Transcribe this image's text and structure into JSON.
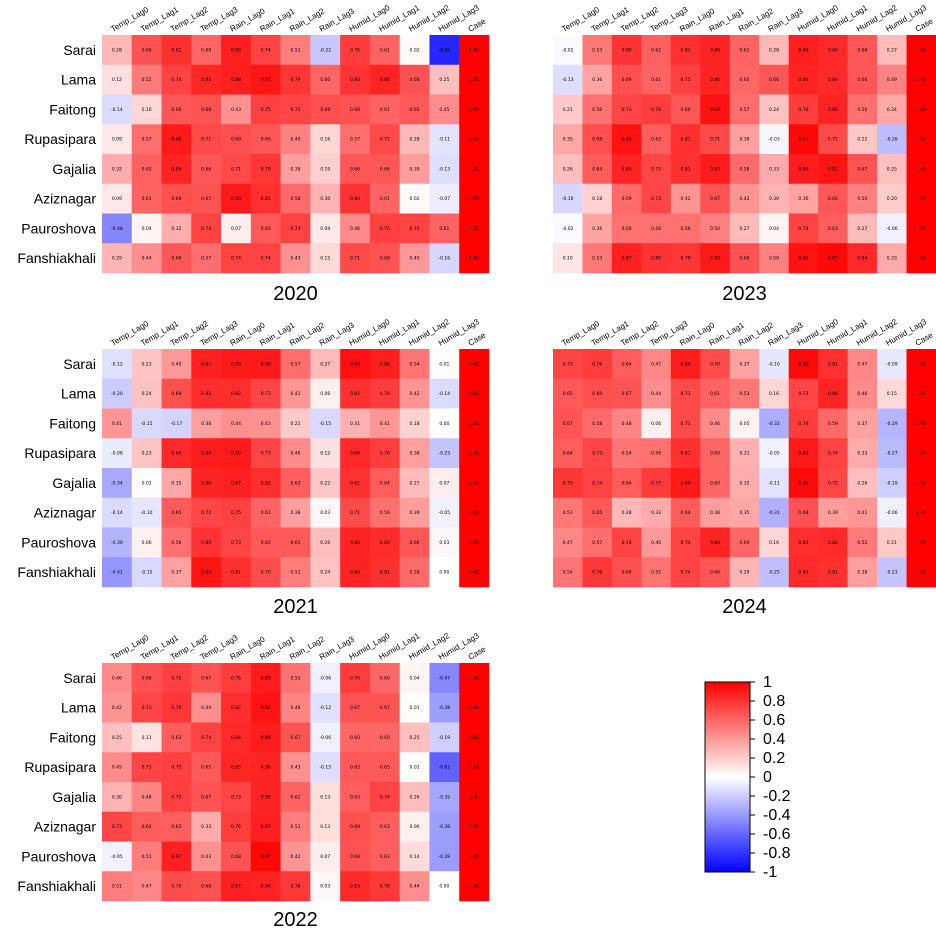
{
  "chart_data": [
    {
      "type": "heatmap",
      "title": "2020",
      "rows": [
        "Sarai",
        "Lama",
        "Faitong",
        "Rupasipara",
        "Gajalia",
        "Aziznagar",
        "Pauroshova",
        "Fanshiakhali"
      ],
      "columns": [
        "Temp_Lag0",
        "Temp_Lag1",
        "Temp_Lag2",
        "Temp_Lag3",
        "Rain_Lag0",
        "Rain_Lag1",
        "Rain_Lag2",
        "Rain_Lag3",
        "Humid_Lag0",
        "Humid_Lag1",
        "Humid_Lag2",
        "Humid_Lag3",
        "Case"
      ],
      "values": [
        [
          0.28,
          0.68,
          0.81,
          0.6,
          0.88,
          0.74,
          0.51,
          -0.22,
          0.76,
          0.61,
          0.02,
          -0.85,
          1.0
        ],
        [
          0.12,
          0.52,
          0.74,
          0.85,
          0.88,
          0.91,
          0.79,
          0.6,
          0.8,
          0.86,
          0.68,
          0.25,
          1.0
        ],
        [
          -0.14,
          0.16,
          0.66,
          0.68,
          0.43,
          0.75,
          0.73,
          0.69,
          0.68,
          0.61,
          0.65,
          0.45,
          1.0
        ],
        [
          0.09,
          0.57,
          0.9,
          0.71,
          0.69,
          0.66,
          0.49,
          0.16,
          0.57,
          0.71,
          0.28,
          -0.11,
          1.0
        ],
        [
          0.32,
          0.62,
          0.86,
          0.66,
          0.71,
          0.79,
          0.38,
          0.19,
          0.66,
          0.66,
          0.39,
          -0.13,
          1.0
        ],
        [
          0.09,
          0.61,
          0.69,
          0.67,
          0.9,
          0.81,
          0.58,
          0.3,
          0.8,
          0.61,
          0.02,
          -0.07,
          1.0
        ],
        [
          -0.48,
          0.04,
          0.32,
          0.74,
          0.07,
          0.65,
          0.74,
          0.09,
          0.46,
          0.75,
          0.74,
          0.61,
          1.0
        ],
        [
          0.29,
          0.44,
          0.66,
          0.57,
          0.74,
          0.74,
          0.43,
          0.15,
          0.71,
          0.68,
          0.4,
          -0.16,
          1.0
        ]
      ],
      "colorbar": {
        "min": -1,
        "max": 1
      }
    },
    {
      "type": "heatmap",
      "title": "2021",
      "rows": [
        "Sarai",
        "Lama",
        "Faitong",
        "Rupasipara",
        "Gajalia",
        "Aziznagar",
        "Pauroshova",
        "Fanshiakhali"
      ],
      "columns": [
        "Temp_Lag0",
        "Temp_Lag1",
        "Temp_Lag2",
        "Temp_Lag3",
        "Rain_Lag0",
        "Rain_Lag1",
        "Rain_Lag2",
        "Rain_Lag3",
        "Humid_Lag0",
        "Humid_Lag1",
        "Humid_Lag2",
        "Humid_Lag3",
        "Case"
      ],
      "values": [
        [
          -0.12,
          0.23,
          0.4,
          0.87,
          0.9,
          0.9,
          0.57,
          0.27,
          0.94,
          0.88,
          0.54,
          0.01,
          1.0
        ],
        [
          -0.2,
          0.24,
          0.69,
          0.82,
          0.82,
          0.73,
          0.41,
          0.06,
          0.81,
          0.76,
          0.42,
          -0.14,
          1.0
        ],
        [
          0.41,
          -0.15,
          -0.17,
          0.38,
          0.44,
          0.43,
          0.21,
          -0.15,
          0.31,
          0.41,
          0.18,
          0.0,
          1.0
        ],
        [
          -0.08,
          0.23,
          0.84,
          0.89,
          0.9,
          0.73,
          0.46,
          0.12,
          0.84,
          0.76,
          0.38,
          -0.23,
          1.0
        ],
        [
          -0.34,
          0.01,
          0.35,
          0.86,
          0.87,
          0.82,
          0.63,
          0.22,
          0.81,
          0.64,
          0.27,
          0.07,
          1.0
        ],
        [
          -0.14,
          -0.1,
          0.65,
          0.72,
          0.75,
          0.61,
          0.38,
          0.03,
          0.71,
          0.56,
          0.39,
          -0.05,
          1.0
        ],
        [
          -0.3,
          0.06,
          0.56,
          0.8,
          0.73,
          0.65,
          0.65,
          0.26,
          0.86,
          0.83,
          0.66,
          0.03,
          1.0
        ],
        [
          -0.41,
          -0.15,
          0.37,
          0.92,
          0.81,
          0.7,
          0.51,
          0.24,
          0.86,
          0.81,
          0.58,
          0.0,
          1.0
        ]
      ],
      "colorbar": {
        "min": -1,
        "max": 1
      }
    },
    {
      "type": "heatmap",
      "title": "2022",
      "rows": [
        "Sarai",
        "Lama",
        "Faitong",
        "Rupasipara",
        "Gajalia",
        "Aziznagar",
        "Pauroshova",
        "Fanshiakhali"
      ],
      "columns": [
        "Temp_Lag0",
        "Temp_Lag1",
        "Temp_Lag2",
        "Temp_Lag3",
        "Rain_Lag0",
        "Rain_Lag1",
        "Rain_Lag2",
        "Rain_Lag3",
        "Humid_Lag0",
        "Humid_Lag1",
        "Humid_Lag2",
        "Humid_Lag3",
        "Case"
      ],
      "values": [
        [
          0.46,
          0.68,
          0.75,
          0.67,
          0.76,
          0.89,
          0.55,
          -0.06,
          0.76,
          0.6,
          0.04,
          -0.47,
          1.0
        ],
        [
          0.42,
          0.73,
          0.79,
          0.44,
          0.82,
          0.92,
          0.48,
          -0.12,
          0.67,
          0.67,
          0.01,
          -0.38,
          1.0
        ],
        [
          0.25,
          0.11,
          0.63,
          0.74,
          0.84,
          0.89,
          0.67,
          -0.06,
          0.6,
          0.6,
          0.25,
          -0.19,
          1.0
        ],
        [
          0.45,
          0.73,
          0.75,
          0.65,
          0.85,
          0.86,
          0.43,
          -0.13,
          0.65,
          0.65,
          0.01,
          -0.62,
          1.0
        ],
        [
          0.3,
          0.48,
          0.75,
          0.67,
          0.73,
          0.86,
          0.61,
          0.13,
          0.63,
          0.74,
          0.26,
          -0.35,
          1.0
        ],
        [
          0.73,
          0.64,
          0.63,
          0.33,
          0.76,
          0.87,
          0.51,
          0.13,
          0.69,
          0.63,
          0.06,
          -0.38,
          1.0
        ],
        [
          -0.05,
          0.51,
          0.87,
          0.43,
          0.68,
          0.97,
          0.42,
          0.07,
          0.68,
          0.63,
          0.14,
          -0.39,
          1.0
        ],
        [
          0.51,
          0.47,
          0.7,
          0.68,
          0.87,
          0.86,
          0.78,
          0.03,
          0.83,
          0.78,
          0.44,
          0.0,
          1.0
        ]
      ],
      "colorbar": {
        "min": -1,
        "max": 1
      }
    },
    {
      "type": "heatmap",
      "title": "2023",
      "rows": [
        "Sarai",
        "Lama",
        "Faitong",
        "Rupasipara",
        "Gajalia",
        "Aziznagar",
        "Pauroshova",
        "Fanshiakhali"
      ],
      "columns": [
        "Temp_Lag0",
        "Temp_Lag1",
        "Temp_Lag2",
        "Temp_Lag3",
        "Rain_Lag0",
        "Rain_Lag1",
        "Rain_Lag2",
        "Rain_Lag3",
        "Humid_Lag0",
        "Humid_Lag1",
        "Humid_Lag2",
        "Humid_Lag3",
        "Case"
      ],
      "values": [
        [
          -0.02,
          0.53,
          0.8,
          0.62,
          0.81,
          0.86,
          0.61,
          0.28,
          0.88,
          0.84,
          0.66,
          0.27,
          1.0
        ],
        [
          -0.13,
          0.36,
          0.69,
          0.61,
          0.75,
          0.86,
          0.6,
          0.66,
          0.86,
          0.84,
          0.66,
          0.49,
          1.0
        ],
        [
          0.21,
          0.56,
          0.73,
          0.76,
          0.66,
          0.93,
          0.57,
          0.24,
          0.76,
          0.86,
          0.56,
          0.34,
          1.0
        ],
        [
          0.35,
          0.69,
          0.93,
          0.63,
          0.81,
          0.71,
          0.38,
          -0.03,
          0.97,
          0.71,
          0.22,
          -0.26,
          1.0
        ],
        [
          0.26,
          0.64,
          0.86,
          0.72,
          0.81,
          0.89,
          0.58,
          0.33,
          0.89,
          0.92,
          0.67,
          0.25,
          1.0
        ],
        [
          -0.16,
          0.18,
          0.59,
          0.73,
          0.42,
          0.67,
          0.42,
          0.3,
          0.36,
          0.66,
          0.5,
          0.2,
          1.0
        ],
        [
          -0.02,
          0.36,
          0.56,
          0.56,
          0.56,
          0.5,
          0.27,
          0.04,
          0.74,
          0.63,
          0.27,
          -0.06,
          1.0
        ],
        [
          0.1,
          0.53,
          0.87,
          0.8,
          0.79,
          0.9,
          0.68,
          0.5,
          0.93,
          0.97,
          0.84,
          0.33,
          1.0
        ]
      ],
      "colorbar": {
        "min": -1,
        "max": 1
      }
    },
    {
      "type": "heatmap",
      "title": "2024",
      "rows": [
        "Sarai",
        "Lama",
        "Faitong",
        "Rupasipara",
        "Gajalia",
        "Aziznagar",
        "Pauroshova",
        "Fanshiakhali"
      ],
      "columns": [
        "Temp_Lag0",
        "Temp_Lag1",
        "Temp_Lag2",
        "Temp_Lag3",
        "Rain_Lag0",
        "Rain_Lag1",
        "Rain_Lag2",
        "Rain_Lag3",
        "Humid_Lag0",
        "Humid_Lag1",
        "Humid_Lag2",
        "Humid_Lag3",
        "Case"
      ],
      "values": [
        [
          0.73,
          0.76,
          0.64,
          0.47,
          0.89,
          0.7,
          0.37,
          -0.1,
          0.96,
          0.81,
          0.47,
          -0.09,
          1.0
        ],
        [
          0.65,
          0.69,
          0.67,
          0.44,
          0.71,
          0.61,
          0.53,
          0.16,
          0.73,
          0.86,
          0.46,
          0.15,
          1.0
        ],
        [
          0.67,
          0.58,
          0.48,
          0.06,
          0.71,
          0.46,
          0.05,
          -0.32,
          0.76,
          0.59,
          0.37,
          -0.29,
          1.0
        ],
        [
          0.64,
          0.73,
          0.54,
          0.56,
          0.81,
          0.6,
          0.31,
          -0.05,
          0.9,
          0.74,
          0.33,
          -0.27,
          1.0
        ],
        [
          0.79,
          0.74,
          0.64,
          0.77,
          0.9,
          0.6,
          0.32,
          -0.11,
          0.96,
          0.72,
          0.26,
          -0.19,
          1.0
        ],
        [
          0.53,
          0.65,
          0.28,
          0.33,
          0.64,
          0.38,
          0.35,
          -0.31,
          0.68,
          0.39,
          0.41,
          -0.06,
          1.0
        ],
        [
          0.47,
          0.57,
          0.74,
          0.4,
          0.74,
          0.86,
          0.6,
          0.16,
          0.82,
          0.84,
          0.52,
          0.21,
          1.0
        ],
        [
          0.54,
          0.78,
          0.69,
          0.55,
          0.74,
          0.66,
          0.29,
          -0.25,
          0.84,
          0.81,
          0.38,
          -0.23,
          1.0
        ]
      ],
      "colorbar": {
        "min": -1,
        "max": 1
      }
    }
  ],
  "colorbar": {
    "ticks": [
      "1",
      "0.8",
      "0.6",
      "0.4",
      "0.2",
      "0",
      "-0.2",
      "-0.4",
      "-0.6",
      "-0.8",
      "-1"
    ],
    "colors": {
      "negative": "#0000ff",
      "zero": "#ffffff",
      "positive": "#ff0000"
    }
  }
}
